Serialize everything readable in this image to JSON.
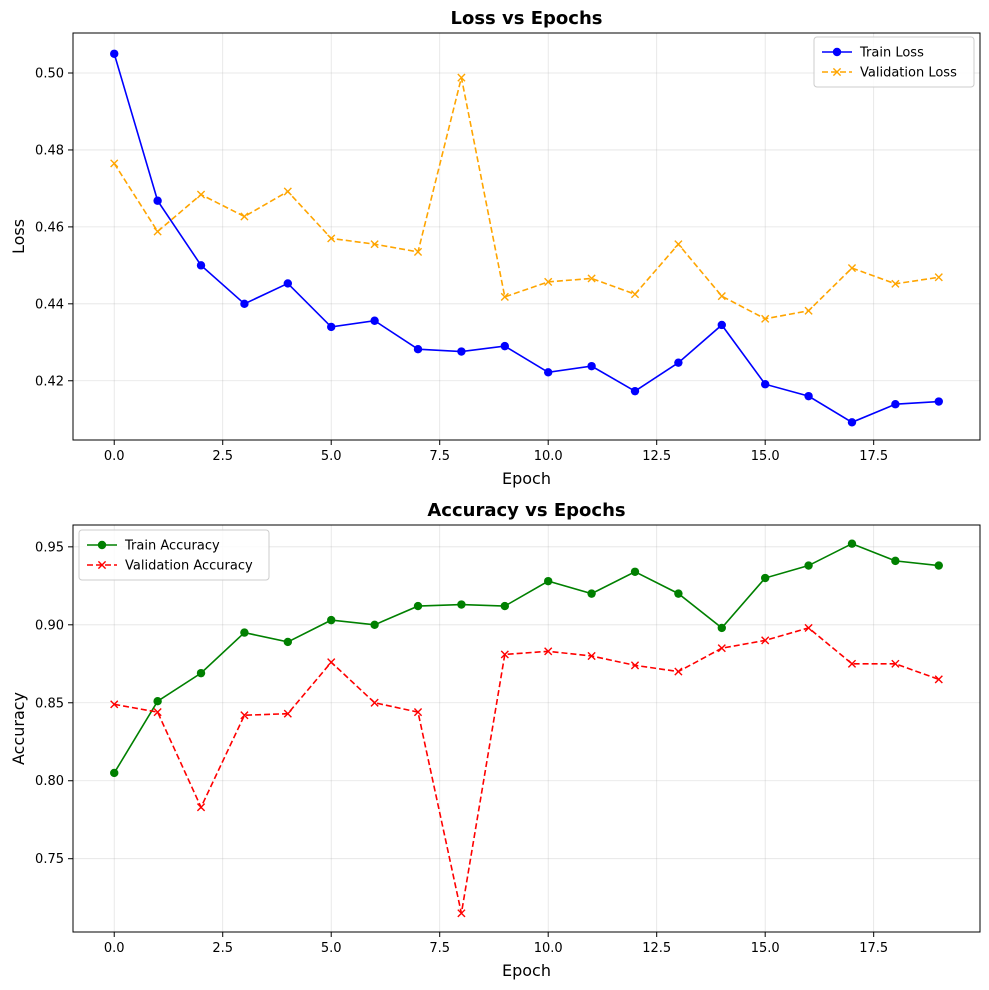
{
  "chart_data": [
    {
      "type": "line",
      "title": "Loss vs Epochs",
      "xlabel": "Epoch",
      "ylabel": "Loss",
      "xlim": [
        -0.95,
        19.95
      ],
      "ylim": [
        0.4046,
        0.5104
      ],
      "xticks": [
        0.0,
        2.5,
        5.0,
        7.5,
        10.0,
        12.5,
        15.0,
        17.5
      ],
      "xtick_labels": [
        "0.0",
        "2.5",
        "5.0",
        "7.5",
        "10.0",
        "12.5",
        "15.0",
        "17.5"
      ],
      "yticks": [
        0.42,
        0.44,
        0.46,
        0.48,
        0.5
      ],
      "ytick_labels": [
        "0.42",
        "0.44",
        "0.46",
        "0.48",
        "0.50"
      ],
      "grid": true,
      "legend_position": "top-right",
      "x": [
        0,
        1,
        2,
        3,
        4,
        5,
        6,
        7,
        8,
        9,
        10,
        11,
        12,
        13,
        14,
        15,
        16,
        17,
        18,
        19
      ],
      "series": [
        {
          "name": "Train Loss",
          "color": "#0000ff",
          "linestyle": "solid",
          "marker": "circle",
          "values": [
            0.505,
            0.4668,
            0.45,
            0.44,
            0.4453,
            0.434,
            0.4356,
            0.4282,
            0.4276,
            0.429,
            0.4222,
            0.4238,
            0.4173,
            0.4247,
            0.4345,
            0.4191,
            0.416,
            0.4092,
            0.4139,
            0.4146
          ]
        },
        {
          "name": "Validation Loss",
          "color": "#ffa500",
          "linestyle": "dashed",
          "marker": "x",
          "values": [
            0.4765,
            0.4588,
            0.4684,
            0.4627,
            0.4692,
            0.457,
            0.4555,
            0.4535,
            0.4988,
            0.4418,
            0.4457,
            0.4466,
            0.4425,
            0.4555,
            0.442,
            0.4361,
            0.4382,
            0.4493,
            0.4452,
            0.4469
          ]
        }
      ]
    },
    {
      "type": "line",
      "title": "Accuracy vs Epochs",
      "xlabel": "Epoch",
      "ylabel": "Accuracy",
      "xlim": [
        -0.95,
        19.95
      ],
      "ylim": [
        0.703,
        0.964
      ],
      "xticks": [
        0.0,
        2.5,
        5.0,
        7.5,
        10.0,
        12.5,
        15.0,
        17.5
      ],
      "xtick_labels": [
        "0.0",
        "2.5",
        "5.0",
        "7.5",
        "10.0",
        "12.5",
        "15.0",
        "17.5"
      ],
      "yticks": [
        0.75,
        0.8,
        0.85,
        0.9,
        0.95
      ],
      "ytick_labels": [
        "0.75",
        "0.80",
        "0.85",
        "0.90",
        "0.95"
      ],
      "grid": true,
      "legend_position": "top-left",
      "x": [
        0,
        1,
        2,
        3,
        4,
        5,
        6,
        7,
        8,
        9,
        10,
        11,
        12,
        13,
        14,
        15,
        16,
        17,
        18,
        19
      ],
      "series": [
        {
          "name": "Train Accuracy",
          "color": "#008000",
          "linestyle": "solid",
          "marker": "circle",
          "values": [
            0.805,
            0.851,
            0.869,
            0.895,
            0.889,
            0.903,
            0.9,
            0.912,
            0.913,
            0.912,
            0.928,
            0.92,
            0.934,
            0.92,
            0.898,
            0.93,
            0.938,
            0.952,
            0.941,
            0.938
          ]
        },
        {
          "name": "Validation Accuracy",
          "color": "#ff0000",
          "linestyle": "dashed",
          "marker": "x",
          "values": [
            0.849,
            0.844,
            0.783,
            0.842,
            0.843,
            0.876,
            0.85,
            0.844,
            0.715,
            0.881,
            0.883,
            0.88,
            0.874,
            0.87,
            0.885,
            0.89,
            0.898,
            0.875,
            0.875,
            0.865
          ]
        }
      ]
    }
  ]
}
